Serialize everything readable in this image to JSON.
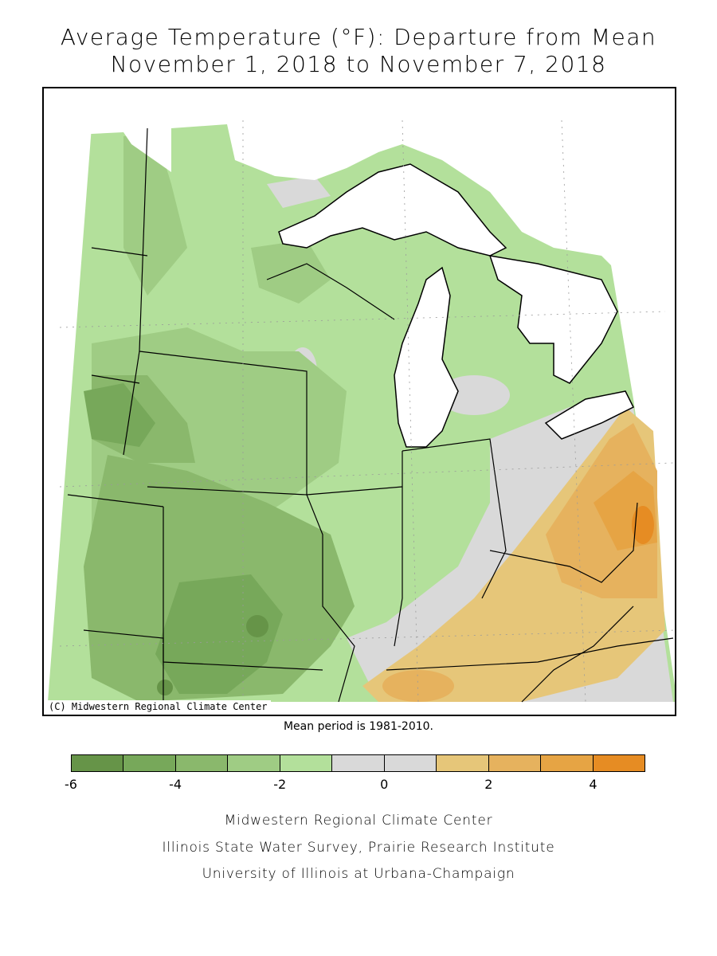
{
  "title": {
    "line1": "Average Temperature (°F): Departure from Mean",
    "line2": "November 1, 2018 to November 7, 2018"
  },
  "map": {
    "copyright": "(C) Midwestern Regional Climate Center",
    "mean_period": "Mean period is 1981-2010."
  },
  "legend": {
    "colors": [
      "#669448",
      "#77a85a",
      "#8ab86c",
      "#9fcc84",
      "#b3e09b",
      "#d9d9d9",
      "#d9d9d9",
      "#e6c679",
      "#e6b25e",
      "#e6a444",
      "#e68c23"
    ],
    "tick_labels": [
      "-6",
      "-4",
      "-2",
      "0",
      "2",
      "4"
    ],
    "tick_values": [
      -6,
      -4,
      -2,
      0,
      2,
      4
    ],
    "min": -6,
    "max": 5
  },
  "credits": {
    "line1": "Midwestern Regional Climate Center",
    "line2": "Illinois State Water Survey, Prairie Research Institute",
    "line3": "University of Illinois at Urbana-Champaign"
  }
}
